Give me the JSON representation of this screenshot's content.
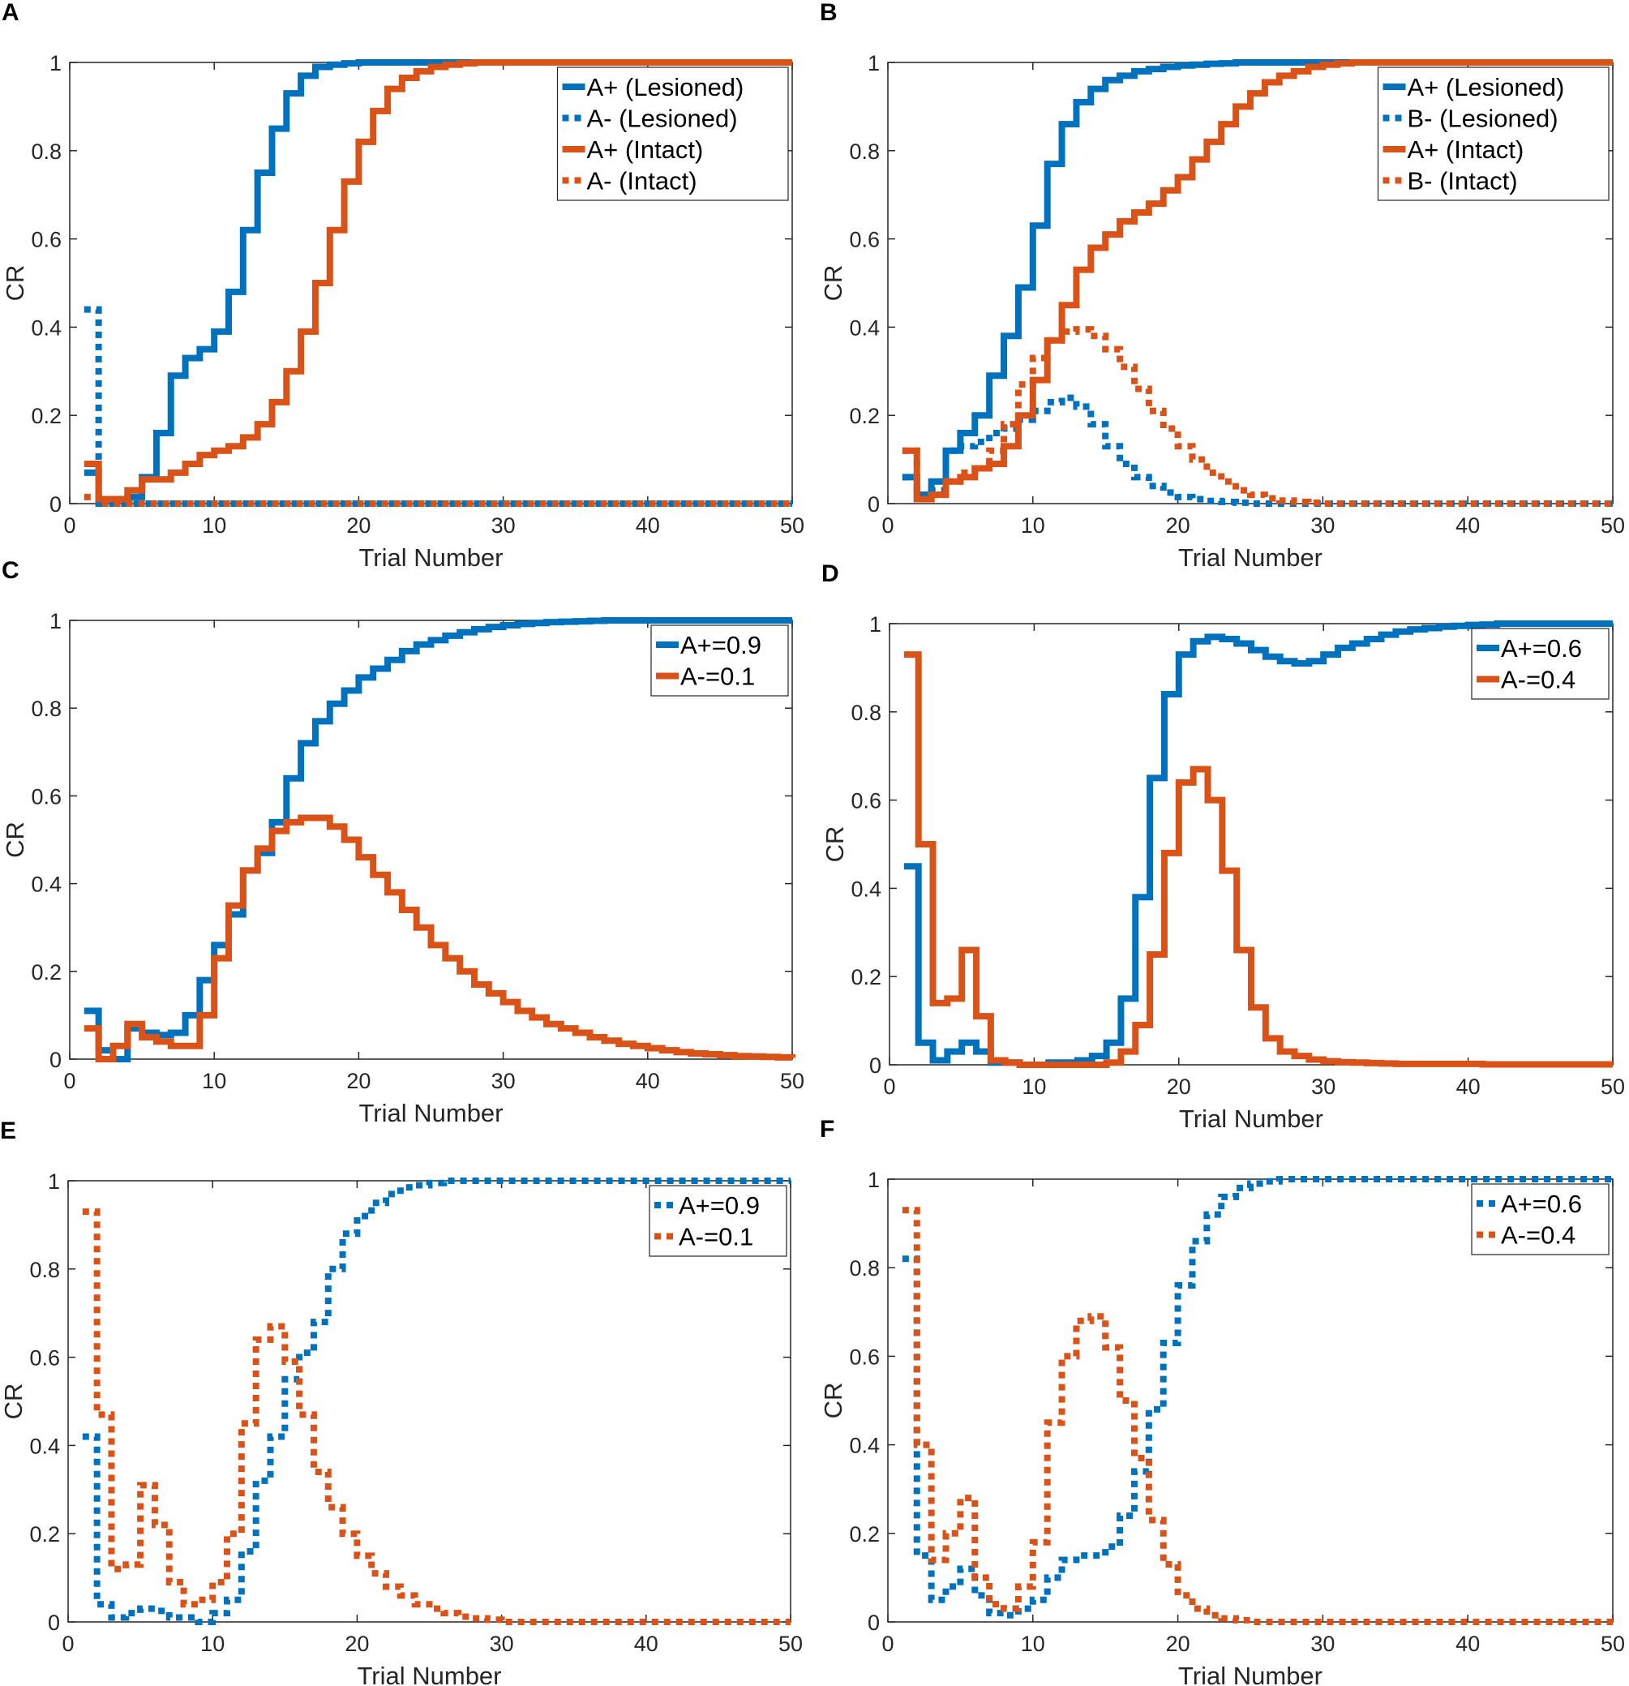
{
  "chart_data": [
    {
      "panel": "A",
      "type": "line",
      "step": true,
      "xlabel": "Trial Number",
      "ylabel": "CR",
      "xlim": [
        0,
        50
      ],
      "ylim": [
        0,
        1
      ],
      "xticks": [
        "0",
        "10",
        "20",
        "30",
        "40",
        "50"
      ],
      "yticks": [
        "0",
        "0.2",
        "0.4",
        "0.6",
        "0.8",
        "1"
      ],
      "legend_position": "top-right",
      "series": [
        {
          "name": "A+ (Lesioned)",
          "color": "#0072BD",
          "style": "solid",
          "values": [
            0.07,
            0.01,
            0.01,
            0.015,
            0.06,
            0.16,
            0.29,
            0.33,
            0.35,
            0.39,
            0.48,
            0.62,
            0.75,
            0.85,
            0.93,
            0.97,
            0.99,
            0.995,
            0.998,
            1,
            1,
            1,
            1,
            1,
            1,
            1,
            1,
            1,
            1,
            1,
            1,
            1,
            1,
            1,
            1,
            1,
            1,
            1,
            1,
            1,
            1,
            1,
            1,
            1,
            1,
            1,
            1,
            1,
            1,
            1
          ]
        },
        {
          "name": "A- (Lesioned)",
          "color": "#0072BD",
          "style": "dotted",
          "values": [
            0.44,
            0,
            0,
            0,
            0,
            0,
            0,
            0,
            0,
            0,
            0,
            0,
            0,
            0,
            0,
            0,
            0,
            0,
            0,
            0,
            0,
            0,
            0,
            0,
            0,
            0,
            0,
            0,
            0,
            0,
            0,
            0,
            0,
            0,
            0,
            0,
            0,
            0,
            0,
            0,
            0,
            0,
            0,
            0,
            0,
            0,
            0,
            0,
            0,
            0
          ]
        },
        {
          "name": "A+ (Intact)",
          "color": "#D95319",
          "style": "solid",
          "values": [
            0.09,
            0.01,
            0.01,
            0.03,
            0.055,
            0.055,
            0.07,
            0.09,
            0.11,
            0.12,
            0.13,
            0.15,
            0.18,
            0.23,
            0.3,
            0.39,
            0.5,
            0.62,
            0.73,
            0.82,
            0.89,
            0.94,
            0.965,
            0.98,
            0.99,
            0.995,
            0.998,
            1,
            1,
            1,
            1,
            1,
            1,
            1,
            1,
            1,
            1,
            1,
            1,
            1,
            1,
            1,
            1,
            1,
            1,
            1,
            1,
            1,
            1,
            1
          ]
        },
        {
          "name": "A- (Intact)",
          "color": "#D95319",
          "style": "dotted",
          "values": [
            0.015,
            0,
            0,
            0,
            0,
            0,
            0,
            0,
            0,
            0,
            0,
            0,
            0,
            0,
            0,
            0,
            0,
            0,
            0,
            0,
            0,
            0,
            0,
            0,
            0,
            0,
            0,
            0,
            0,
            0,
            0,
            0,
            0,
            0,
            0,
            0,
            0,
            0,
            0,
            0,
            0,
            0,
            0,
            0,
            0,
            0,
            0,
            0,
            0,
            0
          ]
        }
      ]
    },
    {
      "panel": "B",
      "type": "line",
      "step": true,
      "xlabel": "Trial Number",
      "ylabel": "CR",
      "xlim": [
        0,
        50
      ],
      "ylim": [
        0,
        1
      ],
      "xticks": [
        "0",
        "10",
        "20",
        "30",
        "40",
        "50"
      ],
      "yticks": [
        "0",
        "0.2",
        "0.4",
        "0.6",
        "0.8",
        "1"
      ],
      "legend_position": "top-right",
      "series": [
        {
          "name": "A+ (Lesioned)",
          "color": "#0072BD",
          "style": "solid",
          "values": [
            0.06,
            0.02,
            0.05,
            0.12,
            0.16,
            0.2,
            0.29,
            0.38,
            0.49,
            0.63,
            0.77,
            0.86,
            0.91,
            0.94,
            0.96,
            0.97,
            0.98,
            0.985,
            0.99,
            0.993,
            0.995,
            0.997,
            0.998,
            1,
            1,
            1,
            1,
            1,
            1,
            1,
            1,
            1,
            1,
            1,
            1,
            1,
            1,
            1,
            1,
            1,
            1,
            1,
            1,
            1,
            1,
            1,
            1,
            1,
            1,
            1
          ]
        },
        {
          "name": "B- (Lesioned)",
          "color": "#0072BD",
          "style": "dotted",
          "values": [
            0.06,
            0.02,
            0.03,
            0.12,
            0.13,
            0.14,
            0.16,
            0.17,
            0.19,
            0.21,
            0.23,
            0.24,
            0.22,
            0.18,
            0.13,
            0.09,
            0.06,
            0.04,
            0.025,
            0.015,
            0.01,
            0.006,
            0.004,
            0.002,
            0,
            0,
            0,
            0,
            0,
            0,
            0,
            0,
            0,
            0,
            0,
            0,
            0,
            0,
            0,
            0,
            0,
            0,
            0,
            0,
            0,
            0,
            0,
            0,
            0,
            0
          ]
        },
        {
          "name": "A+ (Intact)",
          "color": "#D95319",
          "style": "solid",
          "values": [
            0.12,
            0.01,
            0.02,
            0.05,
            0.06,
            0.08,
            0.09,
            0.13,
            0.2,
            0.28,
            0.37,
            0.45,
            0.53,
            0.58,
            0.61,
            0.64,
            0.66,
            0.68,
            0.71,
            0.74,
            0.78,
            0.82,
            0.86,
            0.9,
            0.93,
            0.955,
            0.97,
            0.98,
            0.99,
            0.995,
            0.998,
            1,
            1,
            1,
            1,
            1,
            1,
            1,
            1,
            1,
            1,
            1,
            1,
            1,
            1,
            1,
            1,
            1,
            1,
            1
          ]
        },
        {
          "name": "B- (Intact)",
          "color": "#D95319",
          "style": "dotted",
          "values": [
            0.12,
            0.01,
            0.02,
            0.05,
            0.07,
            0.08,
            0.12,
            0.18,
            0.27,
            0.33,
            0.37,
            0.39,
            0.395,
            0.38,
            0.35,
            0.31,
            0.26,
            0.21,
            0.17,
            0.13,
            0.1,
            0.07,
            0.05,
            0.03,
            0.02,
            0.012,
            0.007,
            0.004,
            0.002,
            0,
            0,
            0,
            0,
            0,
            0,
            0,
            0,
            0,
            0,
            0,
            0,
            0,
            0,
            0,
            0,
            0,
            0,
            0,
            0,
            0
          ]
        }
      ]
    },
    {
      "panel": "C",
      "type": "line",
      "step": true,
      "xlabel": "Trial Number",
      "ylabel": "CR",
      "xlim": [
        0,
        50
      ],
      "ylim": [
        0,
        1
      ],
      "xticks": [
        "0",
        "10",
        "20",
        "30",
        "40",
        "50"
      ],
      "yticks": [
        "0",
        "0.2",
        "0.4",
        "0.6",
        "0.8",
        "1"
      ],
      "legend_position": "top-right",
      "series": [
        {
          "name": "A+=0.9",
          "color": "#0072BD",
          "style": "solid",
          "values": [
            0.11,
            0.02,
            0.0,
            0.07,
            0.06,
            0.055,
            0.06,
            0.1,
            0.18,
            0.26,
            0.33,
            0.43,
            0.47,
            0.54,
            0.64,
            0.72,
            0.77,
            0.81,
            0.84,
            0.87,
            0.89,
            0.91,
            0.93,
            0.945,
            0.955,
            0.965,
            0.973,
            0.98,
            0.985,
            0.989,
            0.992,
            0.994,
            0.996,
            0.997,
            0.998,
            0.999,
            1,
            1,
            1,
            1,
            1,
            1,
            1,
            1,
            1,
            1,
            1,
            1,
            1,
            1
          ]
        },
        {
          "name": "A-=0.1",
          "color": "#D95319",
          "style": "solid",
          "values": [
            0.07,
            0.0,
            0.03,
            0.08,
            0.05,
            0.04,
            0.03,
            0.03,
            0.1,
            0.23,
            0.35,
            0.43,
            0.48,
            0.52,
            0.54,
            0.55,
            0.55,
            0.53,
            0.5,
            0.46,
            0.42,
            0.38,
            0.34,
            0.3,
            0.26,
            0.23,
            0.2,
            0.17,
            0.15,
            0.13,
            0.11,
            0.095,
            0.08,
            0.07,
            0.06,
            0.05,
            0.042,
            0.035,
            0.03,
            0.025,
            0.02,
            0.016,
            0.013,
            0.011,
            0.009,
            0.007,
            0.006,
            0.005,
            0.004,
            0.003
          ]
        }
      ]
    },
    {
      "panel": "D",
      "type": "line",
      "step": true,
      "xlabel": "Trial Number",
      "ylabel": "CR",
      "xlim": [
        0,
        50
      ],
      "ylim": [
        0,
        1
      ],
      "xticks": [
        "0",
        "10",
        "20",
        "30",
        "40",
        "50"
      ],
      "yticks": [
        "0",
        "0.2",
        "0.4",
        "0.6",
        "0.8",
        "1"
      ],
      "legend_position": "top-right",
      "series": [
        {
          "name": "A+=0.6",
          "color": "#0072BD",
          "style": "solid",
          "values": [
            0.45,
            0.05,
            0.01,
            0.03,
            0.05,
            0.03,
            0.005,
            0.005,
            0,
            0,
            0.005,
            0.005,
            0.01,
            0.02,
            0.05,
            0.15,
            0.38,
            0.65,
            0.84,
            0.93,
            0.96,
            0.97,
            0.965,
            0.955,
            0.94,
            0.925,
            0.915,
            0.91,
            0.915,
            0.93,
            0.945,
            0.955,
            0.965,
            0.975,
            0.982,
            0.987,
            0.99,
            0.993,
            0.995,
            0.997,
            0.998,
            1,
            1,
            1,
            1,
            1,
            1,
            1,
            1,
            1
          ]
        },
        {
          "name": "A-=0.4",
          "color": "#D95319",
          "style": "solid",
          "values": [
            0.93,
            0.5,
            0.14,
            0.15,
            0.26,
            0.11,
            0.01,
            0.005,
            0,
            0,
            0,
            0,
            0,
            0,
            0.005,
            0.03,
            0.09,
            0.25,
            0.48,
            0.64,
            0.67,
            0.6,
            0.44,
            0.26,
            0.13,
            0.06,
            0.03,
            0.02,
            0.012,
            0.008,
            0.006,
            0.005,
            0.004,
            0.003,
            0.002,
            0.002,
            0.002,
            0.002,
            0.002,
            0.002,
            0.001,
            0.001,
            0.001,
            0.001,
            0.001,
            0.001,
            0.001,
            0.001,
            0.001,
            0.001
          ]
        }
      ]
    },
    {
      "panel": "E",
      "type": "line",
      "step": true,
      "xlabel": "Trial Number",
      "ylabel": "CR",
      "xlim": [
        0,
        50
      ],
      "ylim": [
        0,
        1
      ],
      "xticks": [
        "0",
        "10",
        "20",
        "30",
        "40",
        "50"
      ],
      "yticks": [
        "0",
        "0.2",
        "0.4",
        "0.6",
        "0.8",
        "1"
      ],
      "legend_position": "top-right",
      "series": [
        {
          "name": "A+=0.9",
          "color": "#0072BD",
          "style": "dotted",
          "values": [
            0.42,
            0.04,
            0.01,
            0.02,
            0.03,
            0.025,
            0.01,
            0.01,
            0,
            0.02,
            0.05,
            0.16,
            0.32,
            0.42,
            0.55,
            0.61,
            0.68,
            0.8,
            0.88,
            0.92,
            0.95,
            0.97,
            0.985,
            0.99,
            0.995,
            1,
            1,
            1,
            1,
            1,
            1,
            1,
            1,
            1,
            1,
            1,
            1,
            1,
            1,
            1,
            1,
            1,
            1,
            1,
            1,
            1,
            1,
            1,
            1,
            1
          ]
        },
        {
          "name": "A-=0.1",
          "color": "#D95319",
          "style": "dotted",
          "values": [
            0.93,
            0.47,
            0.12,
            0.13,
            0.31,
            0.22,
            0.09,
            0.04,
            0.05,
            0.09,
            0.2,
            0.45,
            0.64,
            0.67,
            0.59,
            0.47,
            0.34,
            0.26,
            0.2,
            0.15,
            0.11,
            0.08,
            0.06,
            0.04,
            0.03,
            0.02,
            0.012,
            0.008,
            0.005,
            0,
            0,
            0,
            0,
            0,
            0,
            0,
            0,
            0,
            0,
            0,
            0,
            0,
            0,
            0,
            0,
            0,
            0,
            0,
            0,
            0
          ]
        }
      ]
    },
    {
      "panel": "F",
      "type": "line",
      "step": true,
      "xlabel": "Trial Number",
      "ylabel": "CR",
      "xlim": [
        0,
        50
      ],
      "ylim": [
        0,
        1
      ],
      "xticks": [
        "0",
        "10",
        "20",
        "30",
        "40",
        "50"
      ],
      "yticks": [
        "0",
        "0.2",
        "0.4",
        "0.6",
        "0.8",
        "1"
      ],
      "legend_position": "top-right",
      "series": [
        {
          "name": "A+=0.6",
          "color": "#0072BD",
          "style": "dotted",
          "values": [
            0.82,
            0.15,
            0.05,
            0.08,
            0.12,
            0.06,
            0.02,
            0.015,
            0.03,
            0.05,
            0.1,
            0.14,
            0.15,
            0.15,
            0.17,
            0.24,
            0.34,
            0.48,
            0.63,
            0.76,
            0.86,
            0.92,
            0.96,
            0.98,
            0.99,
            0.995,
            1,
            1,
            1,
            1,
            1,
            1,
            1,
            1,
            1,
            1,
            1,
            1,
            1,
            1,
            1,
            1,
            1,
            1,
            1,
            1,
            1,
            1,
            1,
            1
          ]
        },
        {
          "name": "A-=0.4",
          "color": "#D95319",
          "style": "dotted",
          "values": [
            0.93,
            0.4,
            0.14,
            0.2,
            0.28,
            0.1,
            0.04,
            0.03,
            0.08,
            0.18,
            0.45,
            0.6,
            0.68,
            0.69,
            0.62,
            0.5,
            0.37,
            0.23,
            0.13,
            0.06,
            0.03,
            0.015,
            0.008,
            0.004,
            0,
            0,
            0,
            0,
            0,
            0,
            0,
            0,
            0,
            0,
            0,
            0,
            0,
            0,
            0,
            0,
            0,
            0,
            0,
            0,
            0,
            0,
            0,
            0,
            0,
            0
          ]
        }
      ]
    }
  ]
}
